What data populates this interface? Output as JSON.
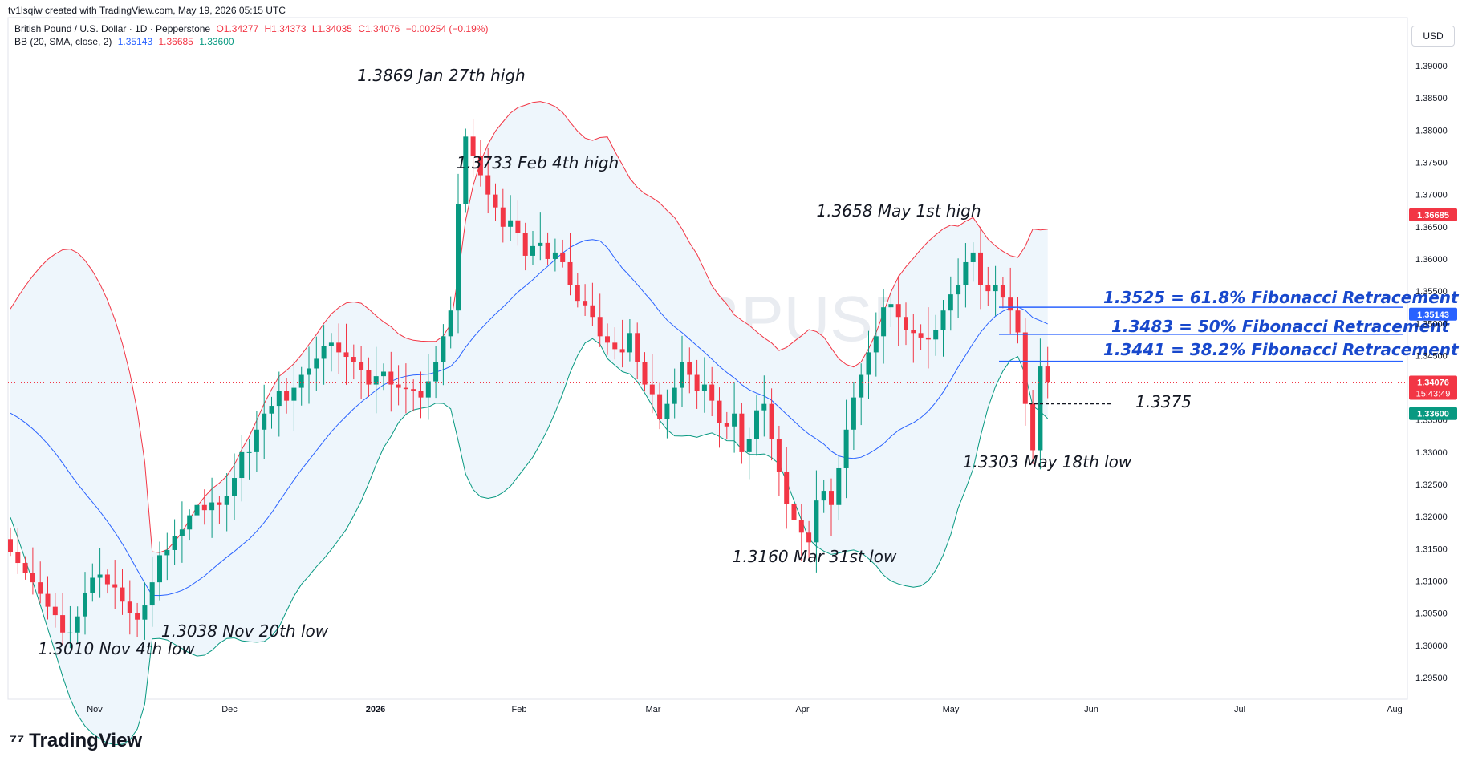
{
  "header": {
    "created": "tv1lsqiw created with TradingView.com, May 19, 2026 05:15 UTC",
    "symbol_line": "British Pound / U.S. Dollar · 1D · Pepperstone",
    "ohlc": {
      "o": "O1.34277",
      "h": "H1.34373",
      "l": "L1.34035",
      "c": "C1.34076",
      "chg": "−0.00254 (−0.19%)"
    },
    "bb_label": "BB (20, SMA, close, 2)",
    "bb_values": {
      "basis": "1.35143",
      "upper": "1.36685",
      "lower": "1.33600"
    },
    "currency_button": "USD"
  },
  "watermark": {
    "title": "GBPUSD, 1D",
    "subtitle": "British Pound / U.S. Dollar"
  },
  "branding": {
    "logo_text": "TradingView"
  },
  "colors": {
    "up": "#089981",
    "down": "#f23645",
    "upper_band": "#f23645",
    "lower_band": "#089981",
    "basis": "#2962ff",
    "band_fill": "#eef6fc",
    "fib": "#1848cc",
    "annotation": "#131722"
  },
  "price_labels": [
    {
      "value": "1.36685",
      "color": "#f23645",
      "price": 1.36685
    },
    {
      "value": "1.35143",
      "color": "#2962ff",
      "price": 1.35143
    },
    {
      "value": "1.34076",
      "sub": "15:43:49",
      "color": "#f23645",
      "price": 1.34076
    },
    {
      "value": "1.33600",
      "color": "#089981",
      "price": 1.336
    }
  ],
  "annotations": [
    {
      "text": "1.3869 Jan 27th high"
    },
    {
      "text": "1.3733 Feb 4th high"
    },
    {
      "text": "1.3658 May 1st high"
    },
    {
      "text": "1.3525 = 61.8% Fibonacci Retracement",
      "fib": true,
      "price": 1.3525
    },
    {
      "text": "1.3483 = 50% Fibonacci Retracement",
      "fib": true,
      "price": 1.3483
    },
    {
      "text": "1.3441 = 38.2% Fibonacci Retracement",
      "fib": true,
      "price": 1.3441
    },
    {
      "text": "1.3375",
      "dashed": true,
      "price": 1.3375
    },
    {
      "text": "1.3303 May 18th low"
    },
    {
      "text": "1.3160 Mar 31st low"
    },
    {
      "text": "1.3038 Nov 20th low"
    },
    {
      "text": "1.3010 Nov 4th low"
    }
  ],
  "chart_data": {
    "type": "candlestick",
    "title": "British Pound / U.S. Dollar · 1D · Pepperstone",
    "y_ticks": [
      "1.29500",
      "1.30000",
      "1.30500",
      "1.31000",
      "1.31500",
      "1.32000",
      "1.32500",
      "1.33000",
      "1.33500",
      "1.34000",
      "1.34500",
      "1.35000",
      "1.35500",
      "1.36000",
      "1.36500",
      "1.37000",
      "1.37500",
      "1.38000",
      "1.38500",
      "1.39000"
    ],
    "ylim": [
      1.2925,
      1.3935
    ],
    "x_ticks": [
      "Nov",
      "Dec",
      "2026",
      "Feb",
      "Mar",
      "Apr",
      "May",
      "Jun",
      "Jul",
      "Aug"
    ],
    "last_close": 1.34076,
    "closes": [
      1.3145,
      1.3128,
      1.3112,
      1.3098,
      1.308,
      1.306,
      1.3047,
      1.302,
      1.302,
      1.3045,
      1.3082,
      1.3105,
      1.311,
      1.3095,
      1.309,
      1.3068,
      1.305,
      1.304,
      1.3062,
      1.3098,
      1.314,
      1.3148,
      1.317,
      1.318,
      1.3202,
      1.3218,
      1.321,
      1.3222,
      1.3218,
      1.3232,
      1.326,
      1.33,
      1.33,
      1.3335,
      1.336,
      1.3372,
      1.3395,
      1.338,
      1.34,
      1.342,
      1.343,
      1.3445,
      1.3465,
      1.347,
      1.3455,
      1.3448,
      1.344,
      1.3428,
      1.3405,
      1.3418,
      1.3425,
      1.3405,
      1.34,
      1.3398,
      1.3395,
      1.3385,
      1.341,
      1.344,
      1.348,
      1.352,
      1.3685,
      1.379,
      1.376,
      1.373,
      1.37,
      1.368,
      1.365,
      1.366,
      1.364,
      1.3605,
      1.362,
      1.3625,
      1.36,
      1.361,
      1.3595,
      1.356,
      1.3535,
      1.3528,
      1.351,
      1.348,
      1.347,
      1.346,
      1.3455,
      1.3485,
      1.344,
      1.3405,
      1.339,
      1.3352,
      1.3375,
      1.34,
      1.344,
      1.342,
      1.3395,
      1.3405,
      1.338,
      1.3345,
      1.334,
      1.336,
      1.33,
      1.332,
      1.3365,
      1.3375,
      1.332,
      1.327,
      1.322,
      1.3195,
      1.3175,
      1.316,
      1.3225,
      1.324,
      1.3218,
      1.3275,
      1.3335,
      1.3385,
      1.342,
      1.3455,
      1.348,
      1.3525,
      1.353,
      1.351,
      1.349,
      1.3485,
      1.3478,
      1.3475,
      1.349,
      1.352,
      1.3545,
      1.356,
      1.3595,
      1.361,
      1.356,
      1.355,
      1.356,
      1.354,
      1.352,
      1.3486,
      1.3375,
      1.3303,
      1.3433,
      1.3408
    ],
    "note": "Daily candles with Bollinger Bands (20, SMA, close, 2); values approximated from chart"
  }
}
